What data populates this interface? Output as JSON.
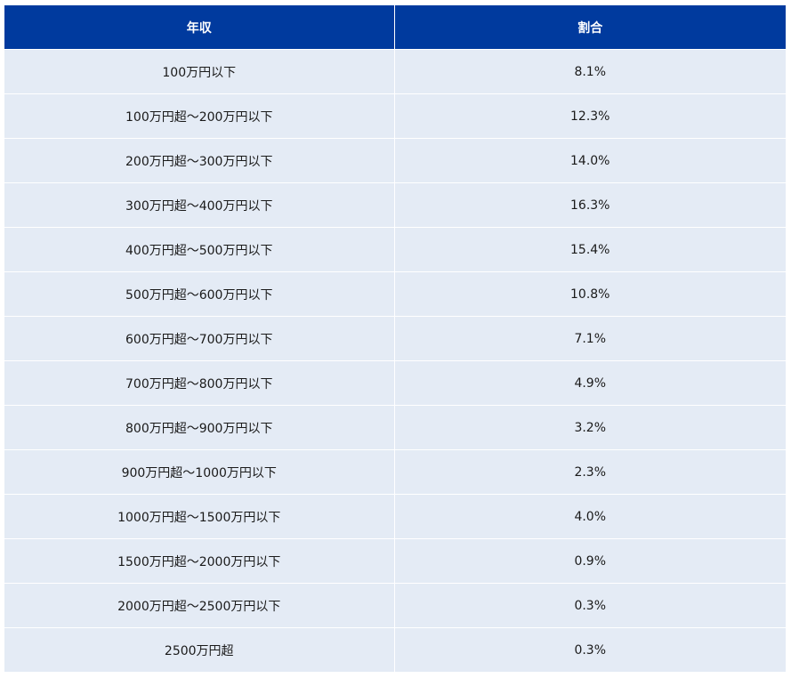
{
  "table": {
    "headers": [
      "年収",
      "割合"
    ],
    "rows": [
      [
        "100万円以下",
        "8.1%"
      ],
      [
        "100万円超～200万円以下",
        "12.3%"
      ],
      [
        "200万円超～300万円以下",
        "14.0%"
      ],
      [
        "300万円超～400万円以下",
        "16.3%"
      ],
      [
        "400万円超～500万円以下",
        "15.4%"
      ],
      [
        "500万円超～600万円以下",
        "10.8%"
      ],
      [
        "600万円超～700万円以下",
        "7.1%"
      ],
      [
        "700万円超～800万円以下",
        "4.9%"
      ],
      [
        "800万円超～900万円以下",
        "3.2%"
      ],
      [
        "900万円超～1000万円以下",
        "2.3%"
      ],
      [
        "1000万円超～1500万円以下",
        "4.0%"
      ],
      [
        "1500万円超～2000万円以下",
        "0.9%"
      ],
      [
        "2000万円超～2500万円以下",
        "0.3%"
      ],
      [
        "2500万円超",
        "0.3%"
      ]
    ]
  },
  "colors": {
    "header_bg": "#003a9e",
    "row_bg": "#e4ebf5"
  }
}
